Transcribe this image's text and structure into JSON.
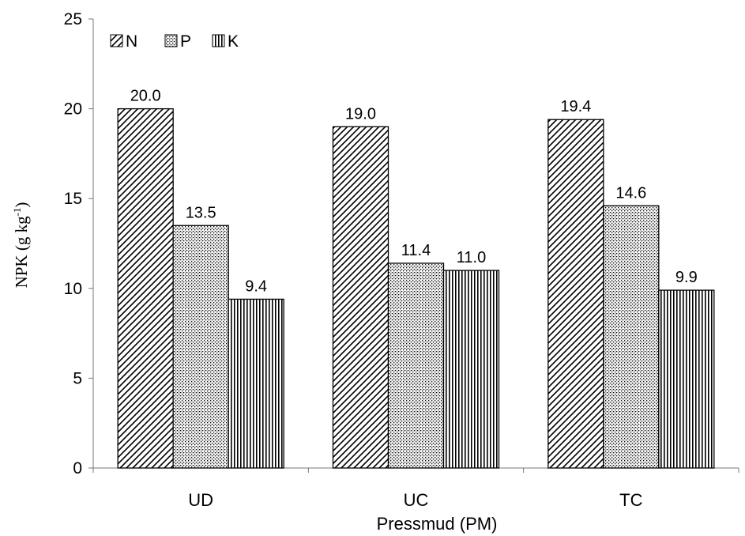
{
  "chart_data": {
    "type": "bar",
    "title": "",
    "xlabel": "Pressmud (PM)",
    "ylabel_main": "NPK (g kg",
    "ylabel_sup": "-1",
    "ylabel_close": ")",
    "categories": [
      "UD",
      "UC",
      "TC"
    ],
    "series": [
      {
        "name": "N",
        "values": [
          20.0,
          19.0,
          19.4
        ],
        "pattern": "diagonal-hatch"
      },
      {
        "name": "P",
        "values": [
          13.5,
          11.4,
          14.6
        ],
        "pattern": "stipple"
      },
      {
        "name": "K",
        "values": [
          9.4,
          11.0,
          9.9
        ],
        "pattern": "vertical-lines"
      }
    ],
    "data_labels": [
      [
        "20.0",
        "19.0",
        "19.4"
      ],
      [
        "13.5",
        "11.4",
        "14.6"
      ],
      [
        "9.4",
        "11.0",
        "9.9"
      ]
    ],
    "ylim": [
      0,
      25
    ],
    "yticks": [
      "0",
      "5",
      "10",
      "15",
      "20",
      "25"
    ],
    "grid": false,
    "legend_position": "top-left",
    "colors": {
      "bar_stroke": "#000000",
      "pattern_ink": "#000000",
      "background": "#ffffff"
    }
  }
}
